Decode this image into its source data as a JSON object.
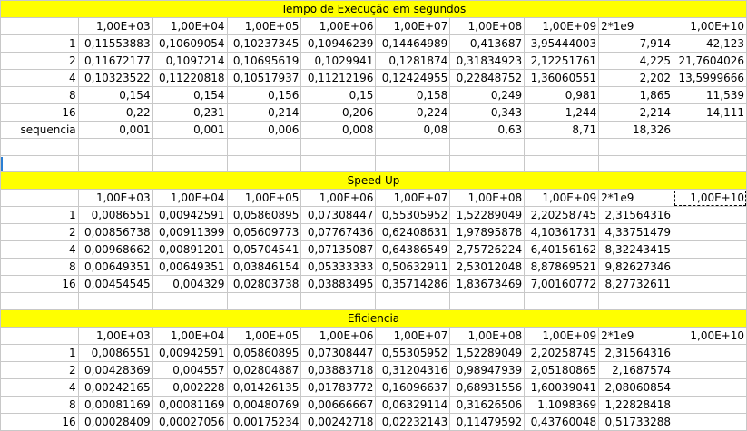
{
  "sections": [
    {
      "title": "Tempo de Execução em segundos",
      "header": [
        "",
        "1,00E+03",
        "1,00E+04",
        "1,00E+05",
        "1,00E+06",
        "1,00E+07",
        "1,00E+08",
        "1,00E+09",
        "2*1e9",
        "1,00E+10"
      ],
      "rows": [
        [
          "1",
          "0,11553883",
          "0,10609054",
          "0,10237345",
          "0,10946239",
          "0,14464989",
          "0,413687",
          "3,95444003",
          "7,914",
          "42,123"
        ],
        [
          "2",
          "0,11672177",
          "0,1097214",
          "0,10695619",
          "0,1029941",
          "0,1281874",
          "0,31834923",
          "2,12251761",
          "4,225",
          "21,7604026"
        ],
        [
          "4",
          "0,10323522",
          "0,11220818",
          "0,10517937",
          "0,11212196",
          "0,12424955",
          "0,22848752",
          "1,36060551",
          "2,202",
          "13,5999666"
        ],
        [
          "8",
          "0,154",
          "0,154",
          "0,156",
          "0,15",
          "0,158",
          "0,249",
          "0,981",
          "1,865",
          "11,539"
        ],
        [
          "16",
          "0,22",
          "0,231",
          "0,214",
          "0,206",
          "0,224",
          "0,343",
          "1,244",
          "2,214",
          "14,111"
        ],
        [
          "sequencia",
          "0,001",
          "0,001",
          "0,006",
          "0,008",
          "0,08",
          "0,63",
          "8,71",
          "18,326",
          ""
        ]
      ]
    },
    {
      "title": "Speed Up",
      "header": [
        "",
        "1,00E+03",
        "1,00E+04",
        "1,00E+05",
        "1,00E+06",
        "1,00E+07",
        "1,00E+08",
        "1,00E+09",
        "2*1e9",
        "1,00E+10"
      ],
      "rows": [
        [
          "1",
          "0,0086551",
          "0,00942591",
          "0,05860895",
          "0,07308447",
          "0,55305952",
          "1,52289049",
          "2,20258745",
          "2,31564316",
          ""
        ],
        [
          "2",
          "0,00856738",
          "0,00911399",
          "0,05609773",
          "0,07767436",
          "0,62408631",
          "1,97895878",
          "4,10361731",
          "4,33751479",
          ""
        ],
        [
          "4",
          "0,00968662",
          "0,00891201",
          "0,05704541",
          "0,07135087",
          "0,64386549",
          "2,75726224",
          "6,40156162",
          "8,32243415",
          ""
        ],
        [
          "8",
          "0,00649351",
          "0,00649351",
          "0,03846154",
          "0,05333333",
          "0,50632911",
          "2,53012048",
          "8,87869521",
          "9,82627346",
          ""
        ],
        [
          "16",
          "0,00454545",
          "0,004329",
          "0,02803738",
          "0,03883495",
          "0,35714286",
          "1,83673469",
          "7,00160772",
          "8,27732611",
          ""
        ]
      ]
    },
    {
      "title": "Eficiencia",
      "header": [
        "",
        "1,00E+03",
        "1,00E+04",
        "1,00E+05",
        "1,00E+06",
        "1,00E+07",
        "1,00E+08",
        "1,00E+09",
        "2*1e9",
        "1,00E+10"
      ],
      "rows": [
        [
          "1",
          "0,0086551",
          "0,00942591",
          "0,05860895",
          "0,07308447",
          "0,55305952",
          "1,52289049",
          "2,20258745",
          "2,31564316",
          ""
        ],
        [
          "2",
          "0,00428369",
          "0,004557",
          "0,02804887",
          "0,03883718",
          "0,31204316",
          "0,98947939",
          "2,05180865",
          "2,1687574",
          ""
        ],
        [
          "4",
          "0,00242165",
          "0,002228",
          "0,01426135",
          "0,01783772",
          "0,16096637",
          "0,68931556",
          "1,60039041",
          "2,08060854",
          ""
        ],
        [
          "8",
          "0,00081169",
          "0,00081169",
          "0,00480769",
          "0,00666667",
          "0,06329114",
          "0,31626506",
          "1,1098369",
          "1,22828418",
          ""
        ],
        [
          "16",
          "0,00028409",
          "0,00027056",
          "0,00175234",
          "0,00242718",
          "0,02232143",
          "0,11479592",
          "0,43760048",
          "0,51733288",
          ""
        ]
      ]
    }
  ],
  "colors": {
    "title_bg": "#ffff00",
    "grid": "#c8c8c8",
    "row_marker": "#2a7fd4"
  }
}
